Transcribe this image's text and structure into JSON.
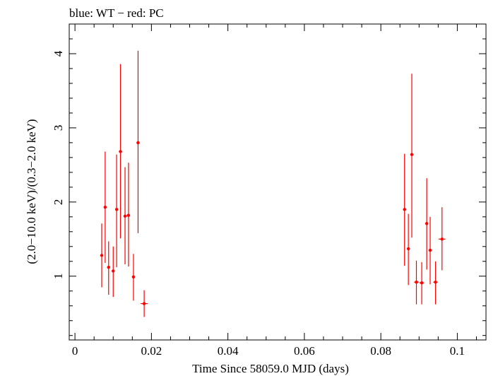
{
  "chart_data": {
    "type": "scatter",
    "title": "blue: WT − red: PC",
    "xlabel": "Time Since 58059.0 MJD (days)",
    "ylabel": "(2.0−10.0 keV)/(0.3−2.0 keV)",
    "xlim": [
      -0.0015,
      0.1075
    ],
    "ylim": [
      0.14,
      4.4
    ],
    "x_ticks": [
      0,
      0.02,
      0.04,
      0.06,
      0.08,
      0.1
    ],
    "x_tick_labels": [
      "0",
      "0.02",
      "0.04",
      "0.06",
      "0.08",
      "0.1"
    ],
    "y_ticks": [
      1,
      2,
      3,
      4
    ],
    "y_tick_labels": [
      "1",
      "2",
      "3",
      "4"
    ],
    "grid": false,
    "series": [
      {
        "color": "#ff0000",
        "points": [
          {
            "x": 0.007,
            "y": 1.28,
            "y_low": 0.85,
            "y_high": 1.71,
            "x_err": 0.0004
          },
          {
            "x": 0.0079,
            "y": 1.93,
            "y_low": 1.18,
            "y_high": 2.68,
            "x_err": 0.0004
          },
          {
            "x": 0.0088,
            "y": 1.12,
            "y_low": 0.75,
            "y_high": 1.47,
            "x_err": 0.0004
          },
          {
            "x": 0.01,
            "y": 1.07,
            "y_low": 0.72,
            "y_high": 1.4,
            "x_err": 0.0004
          },
          {
            "x": 0.0109,
            "y": 1.9,
            "y_low": 1.12,
            "y_high": 2.64,
            "x_err": 0.0004
          },
          {
            "x": 0.0119,
            "y": 2.68,
            "y_low": 1.51,
            "y_high": 3.86,
            "x_err": 0.0004
          },
          {
            "x": 0.0131,
            "y": 1.81,
            "y_low": 1.16,
            "y_high": 2.47,
            "x_err": 0.0004
          },
          {
            "x": 0.014,
            "y": 1.82,
            "y_low": 1.13,
            "y_high": 2.53,
            "x_err": 0.0004
          },
          {
            "x": 0.0153,
            "y": 0.99,
            "y_low": 0.67,
            "y_high": 1.3,
            "x_err": 0.0004
          },
          {
            "x": 0.0165,
            "y": 2.8,
            "y_low": 1.58,
            "y_high": 4.04,
            "x_err": 0.0004
          },
          {
            "x": 0.0181,
            "y": 0.63,
            "y_low": 0.45,
            "y_high": 0.81,
            "x_err": 0.0009
          },
          {
            "x": 0.0862,
            "y": 1.9,
            "y_low": 1.14,
            "y_high": 2.65,
            "x_err": 0.0004
          },
          {
            "x": 0.0872,
            "y": 1.37,
            "y_low": 0.88,
            "y_high": 1.84,
            "x_err": 0.0004
          },
          {
            "x": 0.0881,
            "y": 2.64,
            "y_low": 1.52,
            "y_high": 3.73,
            "x_err": 0.0004
          },
          {
            "x": 0.0893,
            "y": 0.92,
            "y_low": 0.62,
            "y_high": 1.21,
            "x_err": 0.0006
          },
          {
            "x": 0.0907,
            "y": 0.91,
            "y_low": 0.62,
            "y_high": 1.19,
            "x_err": 0.0006
          },
          {
            "x": 0.092,
            "y": 1.71,
            "y_low": 1.09,
            "y_high": 2.32,
            "x_err": 0.0004
          },
          {
            "x": 0.0929,
            "y": 1.35,
            "y_low": 0.89,
            "y_high": 1.8,
            "x_err": 0.0004
          },
          {
            "x": 0.0943,
            "y": 0.92,
            "y_low": 0.62,
            "y_high": 1.2,
            "x_err": 0.0006
          },
          {
            "x": 0.096,
            "y": 1.5,
            "y_low": 1.08,
            "y_high": 1.93,
            "x_err": 0.0009
          }
        ]
      }
    ]
  }
}
